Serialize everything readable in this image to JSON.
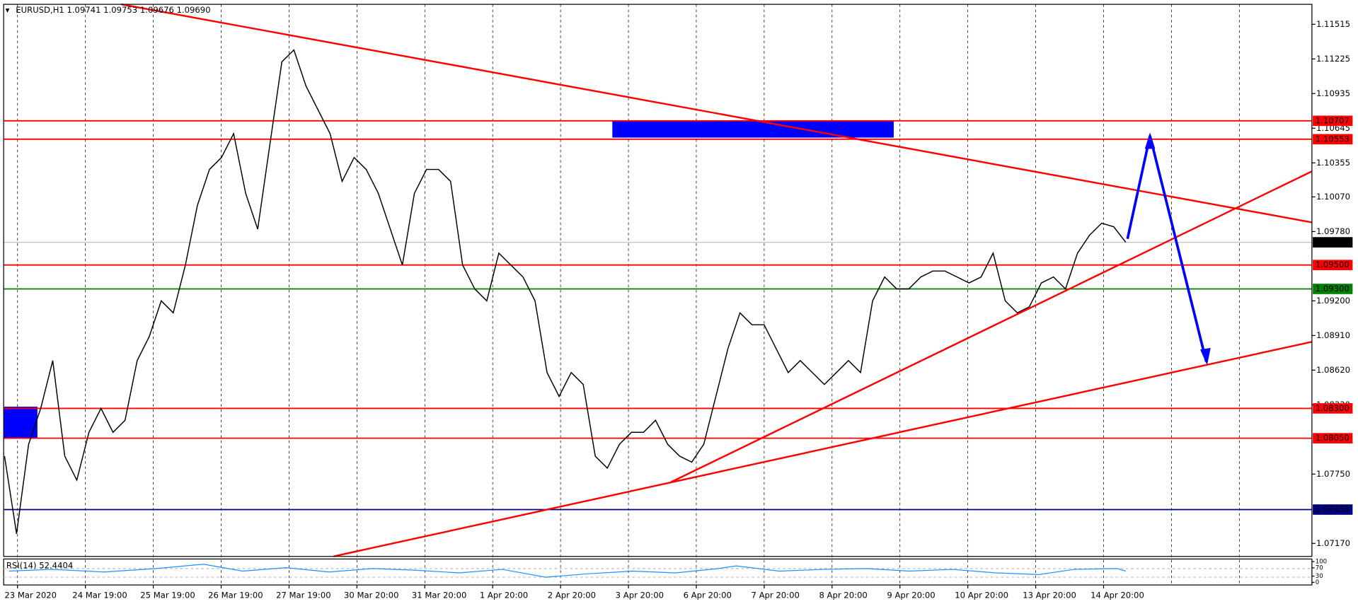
{
  "header": {
    "symbol": "EURUSD,H1",
    "ohlc": "1.09741 1.09753 1.09676 1.09690"
  },
  "chart": {
    "ylim": [
      1.11682,
      1.07061
    ],
    "yticks": [
      {
        "value": 1.11515,
        "label": "1.11515"
      },
      {
        "value": 1.11225,
        "label": "1.11225"
      },
      {
        "value": 1.10935,
        "label": "1.10935"
      },
      {
        "value": 1.10645,
        "label": "1.10645"
      },
      {
        "value": 1.10355,
        "label": "1.10355"
      },
      {
        "value": 1.1007,
        "label": "1.10070"
      },
      {
        "value": 1.0978,
        "label": "1.09780"
      },
      {
        "value": 1.092,
        "label": "1.09200"
      },
      {
        "value": 1.0891,
        "label": "1.08910"
      },
      {
        "value": 1.0862,
        "label": "1.08620"
      },
      {
        "value": 1.0833,
        "label": "1.08330"
      },
      {
        "value": 1.0775,
        "label": "1.07750"
      },
      {
        "value": 1.0717,
        "label": "1.07170"
      }
    ],
    "levels": [
      {
        "value": 1.10707,
        "label": "1.10707",
        "color": "#ff0000"
      },
      {
        "value": 1.10553,
        "label": "1.10553",
        "color": "#ff0000"
      },
      {
        "value": 1.0969,
        "label": "1.09690",
        "color": "#000000"
      },
      {
        "value": 1.095,
        "label": "1.09500",
        "color": "#ff0000"
      },
      {
        "value": 1.093,
        "label": "1.09300",
        "color": "#008000"
      },
      {
        "value": 1.083,
        "label": "1.08300",
        "color": "#ff0000"
      },
      {
        "value": 1.0805,
        "label": "1.08050",
        "color": "#ff0000"
      },
      {
        "value": 1.07453,
        "label": "1.07453",
        "color": "#000080"
      }
    ],
    "closes": [
      1.079,
      1.0725,
      1.08,
      1.083,
      1.087,
      1.079,
      1.077,
      1.081,
      1.083,
      1.081,
      1.082,
      1.087,
      1.089,
      1.092,
      1.091,
      1.095,
      1.1,
      1.103,
      1.104,
      1.106,
      1.101,
      1.098,
      1.105,
      1.112,
      1.113,
      1.11,
      1.108,
      1.106,
      1.102,
      1.104,
      1.103,
      1.101,
      1.098,
      1.095,
      1.101,
      1.103,
      1.103,
      1.102,
      1.095,
      1.093,
      1.092,
      1.096,
      1.095,
      1.094,
      1.092,
      1.086,
      1.084,
      1.086,
      1.085,
      1.079,
      1.078,
      1.08,
      1.081,
      1.081,
      1.082,
      1.08,
      1.079,
      1.0785,
      1.08,
      1.084,
      1.088,
      1.091,
      1.09,
      1.09,
      1.088,
      1.086,
      1.087,
      1.086,
      1.085,
      1.086,
      1.087,
      1.086,
      1.092,
      1.094,
      1.093,
      1.093,
      1.094,
      1.0945,
      1.0945,
      1.094,
      1.0935,
      1.094,
      1.096,
      1.092,
      1.091,
      1.0915,
      1.0935,
      1.094,
      1.093,
      1.096,
      1.0975,
      1.0985,
      1.0982,
      1.0969
    ],
    "time_labels": [
      "23 Mar 2020",
      "24 Mar 19:00",
      "25 Mar 19:00",
      "26 Mar 19:00",
      "27 Mar 19:00",
      "30 Mar 20:00",
      "31 Mar 20:00",
      "1 Apr 20:00",
      "2 Apr 20:00",
      "3 Apr 20:00",
      "6 Apr 20:00",
      "7 Apr 20:00",
      "8 Apr 20:00",
      "9 Apr 20:00",
      "10 Apr 20:00",
      "13 Apr 20:00",
      "14 Apr 20:00"
    ]
  },
  "rsi": {
    "label": "RSI(14) 52.4404",
    "ticks": [
      100,
      70,
      30,
      0
    ]
  }
}
